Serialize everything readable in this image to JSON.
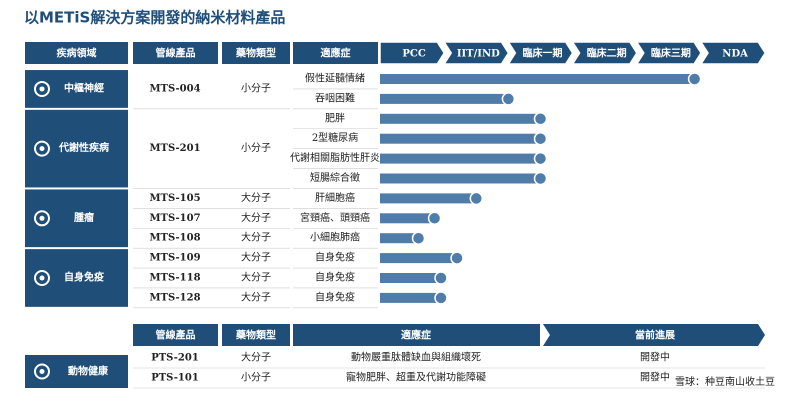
{
  "title": "以METiS解決方案開發的納米材料產品",
  "header": {
    "area": "疾病領域",
    "product": "管線產品",
    "drug_type": "藥物類型",
    "indication": "適應症"
  },
  "stages": [
    "PCC",
    "IIT/IND",
    "臨床一期",
    "臨床二期",
    "臨床三期",
    "NDA"
  ],
  "groups": [
    {
      "area": "中樞神經",
      "products": [
        {
          "name": "MTS-004",
          "drug_type": "小分子",
          "indications": [
            {
              "name": "假性延髓情緒",
              "progress": 4.9
            },
            {
              "name": "吞咽困難",
              "progress": 2.0
            }
          ]
        }
      ]
    },
    {
      "area": "代謝性疾病",
      "products": [
        {
          "name": "MTS-201",
          "drug_type": "小分子",
          "indications": [
            {
              "name": "肥胖",
              "progress": 2.5
            },
            {
              "name": "2型糖尿病",
              "progress": 2.5
            },
            {
              "name": "代謝相關脂肪性肝炎",
              "progress": 2.5
            },
            {
              "name": "短腸綜合徵",
              "progress": 2.5
            }
          ]
        }
      ]
    },
    {
      "area": "腫瘤",
      "products": [
        {
          "name": "MTS-105",
          "drug_type": "大分子",
          "indications": [
            {
              "name": "肝細胞癌",
              "progress": 1.5
            }
          ]
        },
        {
          "name": "MTS-107",
          "drug_type": "大分子",
          "indications": [
            {
              "name": "宮頸癌、頭頸癌",
              "progress": 0.85
            }
          ]
        },
        {
          "name": "MTS-108",
          "drug_type": "大分子",
          "indications": [
            {
              "name": "小細胞肺癌",
              "progress": 0.6
            }
          ]
        }
      ]
    },
    {
      "area": "自身免疫",
      "products": [
        {
          "name": "MTS-109",
          "drug_type": "大分子",
          "indications": [
            {
              "name": "自身免疫",
              "progress": 1.2
            }
          ]
        },
        {
          "name": "MTS-118",
          "drug_type": "大分子",
          "indications": [
            {
              "name": "自身免疫",
              "progress": 0.95
            }
          ]
        },
        {
          "name": "MTS-128",
          "drug_type": "大分子",
          "indications": [
            {
              "name": "自身免疫",
              "progress": 0.95
            }
          ]
        }
      ]
    }
  ],
  "animal": {
    "header": {
      "product": "管線產品",
      "drug_type": "藥物類型",
      "indication": "適應症",
      "status": "當前進展"
    },
    "area": "動物健康",
    "rows": [
      {
        "product": "PTS-201",
        "drug_type": "大分子",
        "indication": "動物嚴重肽體缺血與組織壞死",
        "status": "開發中"
      },
      {
        "product": "PTS-101",
        "drug_type": "小分子",
        "indication": "寵物肥胖、超重及代謝功能障礙",
        "status": "開發中"
      }
    ]
  },
  "watermark": "雪球：种豆南山收土豆"
}
